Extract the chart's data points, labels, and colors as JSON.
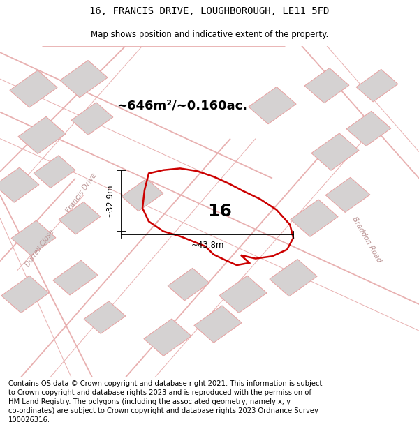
{
  "title": "16, FRANCIS DRIVE, LOUGHBOROUGH, LE11 5FD",
  "subtitle": "Map shows position and indicative extent of the property.",
  "area_label": "~646m²/~0.160ac.",
  "number_label": "16",
  "width_label": "~43.8m",
  "height_label": "~32.9m",
  "footer": "Contains OS data © Crown copyright and database right 2021. This information is subject to Crown copyright and database rights 2023 and is reproduced with the permission of HM Land Registry. The polygons (including the associated geometry, namely x, y co-ordinates) are subject to Crown copyright and database rights 2023 Ordnance Survey 100026316.",
  "map_bg": "#f0eeee",
  "road_color": "#e8b0b0",
  "road_color2": "#d89898",
  "building_fc": "#d5d2d2",
  "building_ec": "#e8a0a0",
  "title_fontsize": 10,
  "subtitle_fontsize": 8.5,
  "area_fontsize": 13,
  "number_fontsize": 18,
  "footer_fontsize": 7.2,
  "road_label_color": "#b89090",
  "road_lw": 1.3,
  "road_lw_thin": 0.7
}
